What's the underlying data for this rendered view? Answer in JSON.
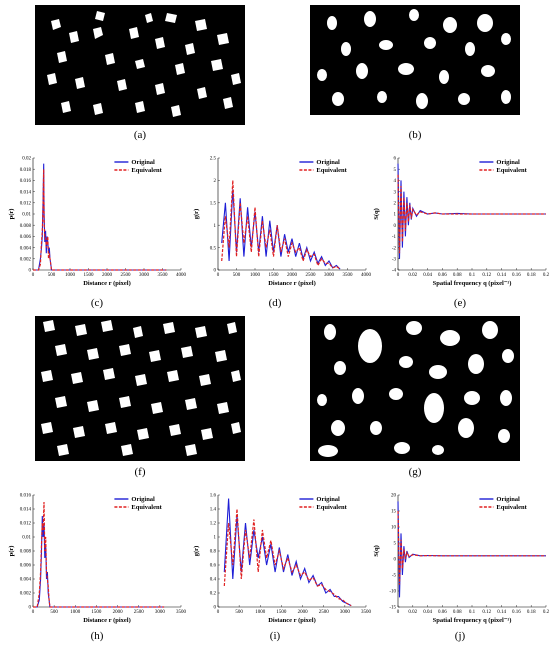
{
  "captions": [
    "(a)",
    "(b)",
    "(c)",
    "(d)",
    "(e)",
    "(f)",
    "(g)",
    "(h)",
    "(i)",
    "(j)"
  ],
  "legend": {
    "original": "Original",
    "equivalent": "Equivalent"
  },
  "colors": {
    "original": "#1f1fd6",
    "equivalent": "#e02020",
    "background": "#000000",
    "particle": "#ffffff"
  },
  "chart_data": [
    {
      "id": "c",
      "type": "line",
      "xlabel": "Distance r (pixel)",
      "ylabel": "p(r)",
      "xlim": [
        0,
        4000
      ],
      "ylim": [
        0,
        0.02
      ],
      "xticks": [
        "0",
        "500",
        "1000",
        "1500",
        "2000",
        "2500",
        "3000",
        "3500",
        "4000"
      ],
      "yticks": [
        "0",
        "0.002",
        "0.004",
        "0.006",
        "0.008",
        "0.01",
        "0.012",
        "0.014",
        "0.016",
        "0.018",
        "0.02"
      ],
      "series": [
        {
          "name": "Original",
          "x": [
            0,
            150,
            200,
            230,
            250,
            270,
            290,
            300,
            320,
            340,
            360,
            380,
            400,
            420,
            440,
            460,
            480,
            500,
            600,
            1000,
            2000,
            3000,
            3600
          ],
          "y": [
            0,
            0,
            0.002,
            0.004,
            0.006,
            0.012,
            0.019,
            0.01,
            0.005,
            0.007,
            0.003,
            0.006,
            0.005,
            0.003,
            0.004,
            0.002,
            0.001,
            0,
            0,
            0,
            0,
            0,
            0
          ]
        },
        {
          "name": "Equivalent",
          "x": [
            0,
            150,
            200,
            230,
            250,
            270,
            290,
            300,
            320,
            340,
            360,
            380,
            400,
            420,
            440,
            460,
            480,
            500,
            600,
            1000,
            2000,
            3000,
            3600
          ],
          "y": [
            0,
            0,
            0.001,
            0.005,
            0.007,
            0.011,
            0.018,
            0.009,
            0.006,
            0.006,
            0.004,
            0.005,
            0.006,
            0.002,
            0.003,
            0.002,
            0.001,
            0,
            0,
            0,
            0,
            0,
            0
          ]
        }
      ]
    },
    {
      "id": "d",
      "type": "line",
      "xlabel": "Distance r (pixel)",
      "ylabel": "g(r)",
      "xlim": [
        0,
        4000
      ],
      "ylim": [
        0,
        2.5
      ],
      "xticks": [
        "0",
        "500",
        "1000",
        "1500",
        "2000",
        "2500",
        "3000",
        "3500",
        "4000"
      ],
      "yticks": [
        "0",
        "0.5",
        "1",
        "1.5",
        "2",
        "2.5"
      ],
      "series": [
        {
          "name": "Original",
          "x": [
            100,
            200,
            300,
            400,
            500,
            600,
            700,
            800,
            900,
            1000,
            1100,
            1200,
            1300,
            1400,
            1500,
            1600,
            1700,
            1800,
            1900,
            2000,
            2100,
            2200,
            2300,
            2400,
            2500,
            2600,
            2700,
            2800,
            2900,
            3000,
            3100,
            3200,
            3300
          ],
          "y": [
            0.6,
            1.5,
            0.2,
            1.8,
            0.4,
            1.6,
            0.3,
            1.4,
            0.5,
            1.3,
            0.4,
            1.2,
            0.3,
            1.1,
            0.4,
            1.0,
            0.3,
            0.8,
            0.4,
            0.7,
            0.3,
            0.6,
            0.25,
            0.5,
            0.2,
            0.4,
            0.15,
            0.3,
            0.1,
            0.2,
            0.05,
            0.1,
            0.02
          ]
        },
        {
          "name": "Equivalent",
          "x": [
            100,
            200,
            300,
            400,
            500,
            600,
            700,
            800,
            900,
            1000,
            1100,
            1200,
            1300,
            1400,
            1500,
            1600,
            1700,
            1800,
            1900,
            2000,
            2100,
            2200,
            2300,
            2400,
            2500,
            2600,
            2700,
            2800,
            2900,
            3000,
            3100,
            3200,
            3300
          ],
          "y": [
            0.2,
            1.2,
            0.5,
            2.0,
            0.3,
            1.5,
            0.6,
            1.2,
            0.4,
            1.4,
            0.3,
            1.1,
            0.5,
            0.9,
            0.3,
            1.0,
            0.4,
            0.7,
            0.3,
            0.6,
            0.4,
            0.5,
            0.2,
            0.45,
            0.3,
            0.35,
            0.1,
            0.25,
            0.15,
            0.15,
            0.05,
            0.08,
            0.02
          ]
        }
      ]
    },
    {
      "id": "e",
      "type": "line",
      "xlabel": "Spatial frequency q (pixel⁻¹)",
      "ylabel": "S(q)",
      "xlim": [
        0,
        0.2
      ],
      "ylim": [
        -4,
        6
      ],
      "xticks": [
        "0",
        "0.02",
        "0.04",
        "0.06",
        "0.08",
        "0.1",
        "0.12",
        "0.14",
        "0.16",
        "0.18",
        "0.2"
      ],
      "yticks": [
        "-4",
        "-3",
        "-2",
        "-1",
        "0",
        "1",
        "2",
        "3",
        "4",
        "5",
        "6"
      ],
      "series": [
        {
          "name": "Original",
          "x": [
            0,
            0.002,
            0.004,
            0.006,
            0.008,
            0.01,
            0.012,
            0.014,
            0.016,
            0.018,
            0.02,
            0.025,
            0.03,
            0.04,
            0.05,
            0.06,
            0.08,
            0.1,
            0.12,
            0.14,
            0.16,
            0.18,
            0.2
          ],
          "y": [
            5.5,
            -3,
            4,
            -2,
            3,
            -1,
            2.5,
            0,
            2,
            0.5,
            1.5,
            0.8,
            1.3,
            1.0,
            1.1,
            1.0,
            1.05,
            1.0,
            1.0,
            1.0,
            1.0,
            1.0,
            1.0
          ]
        },
        {
          "name": "Equivalent",
          "x": [
            0,
            0.002,
            0.004,
            0.006,
            0.008,
            0.01,
            0.012,
            0.014,
            0.016,
            0.018,
            0.02,
            0.025,
            0.03,
            0.04,
            0.05,
            0.06,
            0.08,
            0.1,
            0.12,
            0.14,
            0.16,
            0.18,
            0.2
          ],
          "y": [
            4.5,
            -2.5,
            3.5,
            -1.5,
            2.5,
            -0.5,
            2,
            0.3,
            1.8,
            0.6,
            1.4,
            0.9,
            1.2,
            1.0,
            1.1,
            1.0,
            1.0,
            1.0,
            1.0,
            1.0,
            1.0,
            1.0,
            1.0
          ]
        }
      ]
    },
    {
      "id": "h",
      "type": "line",
      "xlabel": "Distance r (pixel)",
      "ylabel": "p(r)",
      "xlim": [
        0,
        3500
      ],
      "ylim": [
        0,
        0.016
      ],
      "xticks": [
        "0",
        "500",
        "1000",
        "1500",
        "2000",
        "2500",
        "3000",
        "3500"
      ],
      "yticks": [
        "0",
        "0.002",
        "0.004",
        "0.006",
        "0.008",
        "0.01",
        "0.012",
        "0.014",
        "0.016"
      ],
      "series": [
        {
          "name": "Original",
          "x": [
            0,
            100,
            150,
            180,
            200,
            220,
            240,
            260,
            280,
            300,
            320,
            340,
            360,
            380,
            400,
            450,
            500,
            1000,
            2000,
            3100
          ],
          "y": [
            0,
            0,
            0.001,
            0.004,
            0.008,
            0.013,
            0.01,
            0.012,
            0.007,
            0.009,
            0.004,
            0.005,
            0.002,
            0.001,
            0,
            0,
            0,
            0,
            0,
            0
          ]
        },
        {
          "name": "Equivalent",
          "x": [
            0,
            100,
            150,
            180,
            200,
            220,
            240,
            260,
            280,
            300,
            320,
            340,
            360,
            380,
            400,
            450,
            500,
            1000,
            2000,
            3100
          ],
          "y": [
            0,
            0,
            0.002,
            0.005,
            0.009,
            0.012,
            0.011,
            0.015,
            0.008,
            0.01,
            0.005,
            0.004,
            0.003,
            0.001,
            0,
            0,
            0,
            0,
            0,
            0
          ]
        }
      ]
    },
    {
      "id": "i",
      "type": "line",
      "xlabel": "Distance r (pixel)",
      "ylabel": "g(r)",
      "xlim": [
        0,
        3500
      ],
      "ylim": [
        0,
        1.6
      ],
      "xticks": [
        "0",
        "500",
        "1000",
        "1500",
        "2000",
        "2500",
        "3000",
        "3500"
      ],
      "yticks": [
        "0",
        "0.2",
        "0.4",
        "0.6",
        "0.8",
        "1",
        "1.2",
        "1.4",
        "1.6"
      ],
      "series": [
        {
          "name": "Original",
          "x": [
            150,
            250,
            350,
            450,
            550,
            650,
            750,
            850,
            950,
            1050,
            1150,
            1250,
            1350,
            1450,
            1550,
            1650,
            1750,
            1850,
            1950,
            2050,
            2150,
            2250,
            2350,
            2450,
            2550,
            2650,
            2750,
            2850,
            2950,
            3050,
            3150
          ],
          "y": [
            0.5,
            1.55,
            0.4,
            1.3,
            0.5,
            1.2,
            0.6,
            1.1,
            0.7,
            1.0,
            0.6,
            0.9,
            0.5,
            0.85,
            0.5,
            0.75,
            0.45,
            0.65,
            0.4,
            0.55,
            0.35,
            0.45,
            0.3,
            0.35,
            0.2,
            0.25,
            0.15,
            0.15,
            0.08,
            0.05,
            0.02
          ]
        },
        {
          "name": "Equivalent",
          "x": [
            150,
            250,
            350,
            450,
            550,
            650,
            750,
            850,
            950,
            1050,
            1150,
            1250,
            1350,
            1450,
            1550,
            1650,
            1750,
            1850,
            1950,
            2050,
            2150,
            2250,
            2350,
            2450,
            2550,
            2650,
            2750,
            2850,
            2950,
            3050,
            3150
          ],
          "y": [
            0.3,
            1.2,
            0.6,
            1.4,
            0.4,
            1.1,
            0.7,
            1.25,
            0.5,
            1.1,
            0.7,
            0.95,
            0.6,
            0.8,
            0.55,
            0.7,
            0.5,
            0.6,
            0.45,
            0.5,
            0.38,
            0.42,
            0.3,
            0.32,
            0.25,
            0.22,
            0.18,
            0.12,
            0.1,
            0.05,
            0.02
          ]
        }
      ]
    },
    {
      "id": "j",
      "type": "line",
      "xlabel": "Spatial frequency q (pixel⁻¹)",
      "ylabel": "S(q)",
      "xlim": [
        0,
        0.2
      ],
      "ylim": [
        -15,
        20
      ],
      "xticks": [
        "0",
        "0.02",
        "0.04",
        "0.06",
        "0.08",
        "0.1",
        "0.12",
        "0.14",
        "0.16",
        "0.18",
        "0.2"
      ],
      "yticks": [
        "-15",
        "-10",
        "-5",
        "0",
        "5",
        "10",
        "15",
        "20"
      ],
      "series": [
        {
          "name": "Original",
          "x": [
            0,
            0.002,
            0.004,
            0.006,
            0.008,
            0.01,
            0.012,
            0.015,
            0.02,
            0.03,
            0.04,
            0.06,
            0.08,
            0.1,
            0.12,
            0.14,
            0.16,
            0.18,
            0.2
          ],
          "y": [
            18,
            -12,
            8,
            -5,
            4,
            -1,
            2.5,
            0.5,
            1.5,
            1.0,
            1.1,
            1.0,
            1.0,
            1.0,
            1.0,
            1.0,
            1.0,
            1.0,
            1.0
          ]
        },
        {
          "name": "Equivalent",
          "x": [
            0,
            0.002,
            0.004,
            0.006,
            0.008,
            0.01,
            0.012,
            0.015,
            0.02,
            0.03,
            0.04,
            0.06,
            0.08,
            0.1,
            0.12,
            0.14,
            0.16,
            0.18,
            0.2
          ],
          "y": [
            15,
            -8,
            6,
            -3,
            3,
            0,
            2,
            0.8,
            1.3,
            1.0,
            1.05,
            1.0,
            1.0,
            1.0,
            1.0,
            1.0,
            1.0,
            1.0,
            1.0
          ]
        }
      ]
    }
  ]
}
